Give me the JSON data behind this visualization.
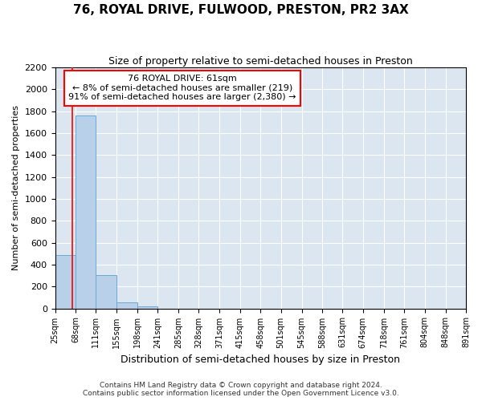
{
  "title": "76, ROYAL DRIVE, FULWOOD, PRESTON, PR2 3AX",
  "subtitle": "Size of property relative to semi-detached houses in Preston",
  "xlabel": "Distribution of semi-detached houses by size in Preston",
  "ylabel": "Number of semi-detached properties",
  "footnote": "Contains HM Land Registry data © Crown copyright and database right 2024.\nContains public sector information licensed under the Open Government Licence v3.0.",
  "property_size": 61,
  "pct_smaller": 8,
  "pct_larger": 91,
  "n_smaller": 219,
  "n_larger": "2,380",
  "bin_edges": [
    25,
    68,
    111,
    155,
    198,
    241,
    285,
    328,
    371,
    415,
    458,
    501,
    545,
    588,
    631,
    674,
    718,
    761,
    804,
    848,
    891
  ],
  "bar_heights": [
    490,
    1760,
    305,
    55,
    20,
    0,
    0,
    0,
    0,
    0,
    0,
    0,
    0,
    0,
    0,
    0,
    0,
    0,
    0,
    0
  ],
  "bar_color": "#b8d0e8",
  "bar_edge_color": "#6aaad4",
  "red_line_x": 61,
  "ylim": [
    0,
    2200
  ],
  "yticks": [
    0,
    200,
    400,
    600,
    800,
    1000,
    1200,
    1400,
    1600,
    1800,
    2000,
    2200
  ],
  "bg_color": "#dce6f0",
  "fig_bg_color": "#ffffff",
  "grid_color": "#ffffff",
  "ann_line1": "76 ROYAL DRIVE: 61sqm",
  "ann_line2": "← 8% of semi-detached houses are smaller (219)",
  "ann_line3": "91% of semi-detached houses are larger (2,380) →",
  "title_fontsize": 11,
  "subtitle_fontsize": 9,
  "xlabel_fontsize": 9,
  "ylabel_fontsize": 8,
  "xtick_fontsize": 7,
  "ytick_fontsize": 8,
  "footnote_fontsize": 6.5,
  "ann_fontsize": 8
}
